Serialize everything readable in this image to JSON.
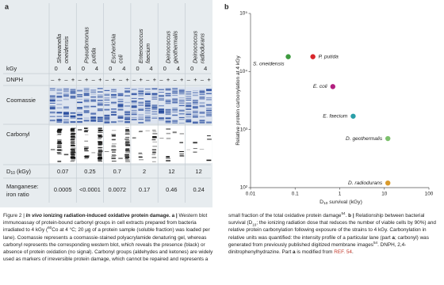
{
  "panel_a": {
    "label": "a",
    "row_labels": {
      "kgy": "kGy",
      "dnph": "DNPH",
      "coomassie": "Coomassie",
      "carbonyl": "Carbonyl",
      "d10": {
        "main": "D",
        "sub": "10",
        "rest": " (kGy)"
      },
      "manganese": [
        "Manganese:",
        "iron ratio"
      ]
    },
    "columns": [
      {
        "name_lines": [
          "Shewanella",
          "oneidensis"
        ],
        "kgy": [
          0,
          4
        ],
        "dnph": [
          "–",
          "+",
          "–",
          "+"
        ],
        "d10": 0.07,
        "mn_fe": 0.0005
      },
      {
        "name_lines": [
          "Pseudomonas",
          "putida"
        ],
        "kgy": [
          0,
          4
        ],
        "dnph": [
          "–",
          "+",
          "–",
          "+"
        ],
        "d10": 0.25,
        "mn_fe": "<0.0001"
      },
      {
        "name_lines": [
          "Escherichia",
          "coli"
        ],
        "kgy": [
          0,
          4
        ],
        "dnph": [
          "–",
          "+",
          "–",
          "+"
        ],
        "d10": 0.7,
        "mn_fe": 0.0072
      },
      {
        "name_lines": [
          "Enterococcus",
          "faecium"
        ],
        "kgy": [
          0,
          4
        ],
        "dnph": [
          "–",
          "+",
          "–",
          "+"
        ],
        "d10": 2,
        "mn_fe": 0.17
      },
      {
        "name_lines": [
          "Deinococcus",
          "geothermalis"
        ],
        "kgy": [
          0,
          4
        ],
        "dnph": [
          "–",
          "+",
          "–",
          "+"
        ],
        "d10": 12,
        "mn_fe": 0.46
      },
      {
        "name_lines": [
          "Deinococcus",
          "radiodurans"
        ],
        "kgy": [
          0,
          4
        ],
        "dnph": [
          "–",
          "+",
          "–",
          "+"
        ],
        "d10": 12,
        "mn_fe": 0.24
      }
    ]
  },
  "chart_data": {
    "type": "scatter",
    "panel_label": "b",
    "ylabel": "Relative protein carbonylation at 4 kGy",
    "xlabel": {
      "main": "D",
      "sub": "10",
      "rest": " survival (kGy)"
    },
    "x": [
      0.07,
      0.25,
      0.7,
      2,
      12,
      12
    ],
    "values": [
      18000,
      18000,
      5500,
      1700,
      700,
      120
    ],
    "point_labels": [
      "S. oneidensis",
      "P. putida",
      "E. coli",
      "E. faecium",
      "D. geothermalis",
      "D. radiodurans"
    ],
    "colors": [
      "#3d9a3f",
      "#d8262b",
      "#b21f7f",
      "#2a9fa8",
      "#7cc06c",
      "#d99a2c"
    ],
    "log_x": true,
    "log_y": true,
    "xlim": [
      0.01,
      100
    ],
    "xticks": [
      0.01,
      0.1,
      1,
      10,
      100
    ],
    "ylim": [
      100,
      100000
    ],
    "yticks": [
      {
        "value": 100,
        "label": "10²"
      },
      {
        "value": 1000,
        "label": "10³"
      },
      {
        "value": 10000,
        "label": "10⁴"
      },
      {
        "value": 100000,
        "label": "10⁵"
      }
    ]
  },
  "caption": {
    "segments": [
      {
        "t": "Figure 2 | ",
        "s": "normal"
      },
      {
        "t": "In vivo",
        "s": "bolditalic"
      },
      {
        "t": " ionizing radiation-induced oxidative protein damage.",
        "s": "bold"
      },
      {
        "t": " a |",
        "s": "bold"
      },
      {
        "t": " Western blot immunoassay of protein-bound carbonyl groups in cell extracts prepared from bacteria irradiated to 4 kGy (",
        "s": "normal"
      },
      {
        "t": "60",
        "s": "sup"
      },
      {
        "t": "Co at 4 °C; 20 μg of a protein sample (soluble fraction) was loaded per lane). Coomassie represents a coomassie-stained polyacrylamide denaturing gel, whereas carbonyl represents the corresponding western blot, which reveals the presence (black) or absence of protein oxidation (no signal). Carbonyl groups (aldehydes and ketones) are widely used as markers of irreversible protein damage, which cannot be repaired and represents a small fraction of the total oxidative protein damage",
        "s": "normal"
      },
      {
        "t": "54",
        "s": "sup"
      },
      {
        "t": ". ",
        "s": "normal"
      },
      {
        "t": "b |",
        "s": "bold"
      },
      {
        "t": " Relationship between bacterial survival (D",
        "s": "normal"
      },
      {
        "t": "10",
        "s": "sub"
      },
      {
        "t": "; the ionizing radiation dose that reduces the number of viable cells by 90%) and relative protein carbonylation following exposure of the strains to 4 kGy. Carbonylation in relative units was quantified: the intensity profile of a particular lane (part ",
        "s": "normal"
      },
      {
        "t": "a",
        "s": "bold"
      },
      {
        "t": "; carbonyl) was generated from previously published digitized membrane images",
        "s": "normal"
      },
      {
        "t": "54",
        "s": "sup"
      },
      {
        "t": ". DNPH, 2,4-dinitrophenylhydrazine. Part ",
        "s": "normal"
      },
      {
        "t": "a",
        "s": "bold"
      },
      {
        "t": " is modified from ",
        "s": "normal"
      },
      {
        "t": "REF. 54",
        "s": "link"
      },
      {
        "t": ".",
        "s": "normal"
      }
    ]
  }
}
